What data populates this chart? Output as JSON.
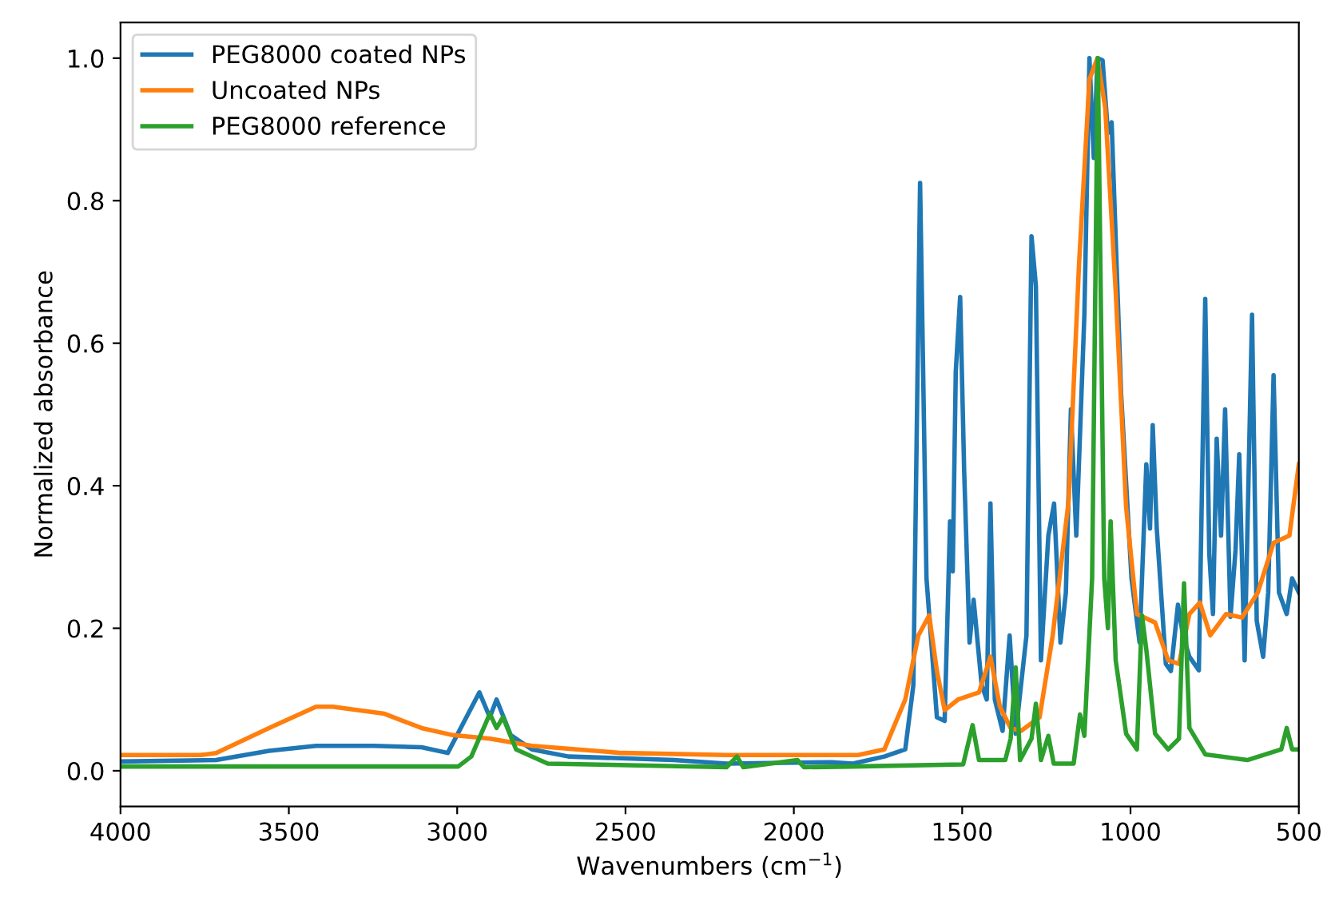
{
  "chart_data": {
    "type": "line",
    "xlabel": "Wavenumbers (cm$^{−1}$)",
    "ylabel": "Normalized absorbance",
    "xlim": [
      4000,
      500
    ],
    "xticks": [
      4000,
      3500,
      3000,
      2500,
      2000,
      1500,
      1000,
      500
    ],
    "ylim": [
      -0.05,
      1.05
    ],
    "yticks": [
      {
        "value": 0,
        "label": "0.0"
      },
      {
        "value": 0.2,
        "label": "0.2"
      },
      {
        "value": 0.4,
        "label": "0.4"
      },
      {
        "value": 0.6,
        "label": "0.6"
      },
      {
        "value": 0.8,
        "label": "0.8"
      },
      {
        "value": 1.0,
        "label": "1.0"
      }
    ],
    "grid": false,
    "legend": "top left",
    "marker": "none",
    "line_style": "solid",
    "series": [
      {
        "name": "PEG8000 coated NPs",
        "color": "#1f77b4",
        "x": [
          4000,
          3716,
          3559,
          3419,
          3247,
          3106,
          3028,
          2934,
          2903,
          2883,
          2841,
          2778,
          2669,
          2356,
          2200,
          1887,
          1825,
          1731,
          1669,
          1645,
          1625,
          1606,
          1575,
          1552,
          1536,
          1528,
          1519,
          1506,
          1494,
          1478,
          1466,
          1442,
          1427,
          1416,
          1403,
          1380,
          1359,
          1341,
          1309,
          1294,
          1281,
          1266,
          1244,
          1227,
          1208,
          1192,
          1177,
          1161,
          1137,
          1122,
          1109,
          1098,
          1083,
          1067,
          1056,
          1028,
          997,
          973,
          953,
          942,
          934,
          922,
          895,
          880,
          859,
          844,
          825,
          797,
          778,
          766,
          755,
          744,
          731,
          719,
          703,
          688,
          677,
          661,
          639,
          625,
          606,
          591,
          575,
          559,
          536,
          520,
          500
        ],
        "values": [
          0.013,
          0.015,
          0.028,
          0.035,
          0.035,
          0.033,
          0.025,
          0.11,
          0.075,
          0.1,
          0.05,
          0.03,
          0.02,
          0.015,
          0.01,
          0.012,
          0.01,
          0.02,
          0.03,
          0.12,
          0.825,
          0.27,
          0.075,
          0.07,
          0.35,
          0.28,
          0.56,
          0.665,
          0.42,
          0.18,
          0.24,
          0.12,
          0.1,
          0.375,
          0.1,
          0.056,
          0.19,
          0.052,
          0.19,
          0.75,
          0.68,
          0.155,
          0.33,
          0.375,
          0.18,
          0.25,
          0.507,
          0.33,
          0.64,
          1.0,
          0.86,
          1.0,
          0.997,
          0.895,
          0.91,
          0.53,
          0.27,
          0.18,
          0.43,
          0.34,
          0.485,
          0.34,
          0.15,
          0.14,
          0.233,
          0.19,
          0.16,
          0.141,
          0.662,
          0.305,
          0.22,
          0.466,
          0.33,
          0.507,
          0.216,
          0.31,
          0.444,
          0.155,
          0.64,
          0.21,
          0.16,
          0.25,
          0.555,
          0.25,
          0.22,
          0.27,
          0.25
        ]
      },
      {
        "name": "Uncoated NPs",
        "color": "#ff7f0e",
        "x": [
          4000,
          3762,
          3716,
          3559,
          3419,
          3370,
          3216,
          3106,
          3013,
          2903,
          2778,
          2512,
          2200,
          1809,
          1731,
          1669,
          1630,
          1598,
          1575,
          1552,
          1512,
          1450,
          1416,
          1388,
          1356,
          1325,
          1270,
          1231,
          1184,
          1153,
          1122,
          1098,
          1075,
          1044,
          1013,
          981,
          927,
          888,
          856,
          825,
          794,
          763,
          716,
          669,
          622,
          575,
          528,
          500
        ],
        "values": [
          0.022,
          0.022,
          0.025,
          0.06,
          0.09,
          0.09,
          0.08,
          0.06,
          0.05,
          0.045,
          0.035,
          0.025,
          0.022,
          0.022,
          0.03,
          0.1,
          0.19,
          0.218,
          0.14,
          0.085,
          0.1,
          0.11,
          0.16,
          0.09,
          0.06,
          0.056,
          0.075,
          0.19,
          0.378,
          0.71,
          0.97,
          1.0,
          0.93,
          0.673,
          0.37,
          0.22,
          0.208,
          0.155,
          0.15,
          0.22,
          0.236,
          0.19,
          0.22,
          0.215,
          0.25,
          0.32,
          0.33,
          0.43
        ]
      },
      {
        "name": "PEG8000 reference",
        "color": "#2ca02c",
        "x": [
          4000,
          2997,
          2958,
          2903,
          2883,
          2864,
          2825,
          2731,
          2200,
          2169,
          2150,
          1989,
          1970,
          1825,
          1497,
          1469,
          1450,
          1372,
          1356,
          1341,
          1328,
          1294,
          1281,
          1266,
          1244,
          1228,
          1169,
          1150,
          1137,
          1114,
          1097,
          1078,
          1067,
          1059,
          1044,
          1013,
          981,
          966,
          953,
          927,
          888,
          856,
          841,
          825,
          778,
          653,
          552,
          536,
          520,
          500
        ],
        "values": [
          0.006,
          0.006,
          0.02,
          0.08,
          0.06,
          0.075,
          0.03,
          0.01,
          0.005,
          0.02,
          0.005,
          0.015,
          0.005,
          0.006,
          0.009,
          0.064,
          0.015,
          0.015,
          0.045,
          0.145,
          0.015,
          0.045,
          0.094,
          0.015,
          0.049,
          0.01,
          0.01,
          0.079,
          0.049,
          0.27,
          1.0,
          0.27,
          0.2,
          0.35,
          0.155,
          0.052,
          0.03,
          0.218,
          0.17,
          0.052,
          0.03,
          0.045,
          0.263,
          0.06,
          0.023,
          0.015,
          0.03,
          0.06,
          0.03,
          0.03
        ]
      }
    ]
  }
}
